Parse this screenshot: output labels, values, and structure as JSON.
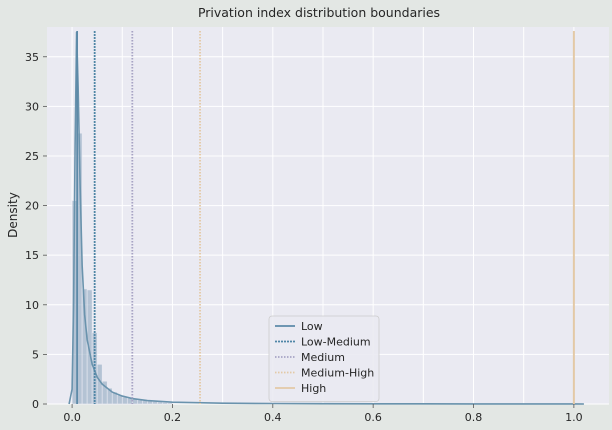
{
  "chart_data": {
    "type": "histogram",
    "title": "Privation index distribution boundaries",
    "xlabel": "",
    "ylabel": "Density",
    "xlim": [
      -0.05,
      1.07
    ],
    "ylim": [
      0,
      38.0
    ],
    "grid": true,
    "xticks": [
      0.0,
      0.2,
      0.4,
      0.6,
      0.8,
      1.0
    ],
    "xtick_labels": [
      "0.0",
      "0.2",
      "0.4",
      "0.6",
      "0.8",
      "1.0"
    ],
    "yticks": [
      0,
      5,
      10,
      15,
      20,
      25,
      30,
      35
    ],
    "ytick_labels": [
      "0",
      "5",
      "10",
      "15",
      "20",
      "25",
      "30",
      "35"
    ],
    "histogram": {
      "bin_edges": [
        0.0,
        0.01,
        0.02,
        0.03,
        0.04,
        0.05,
        0.06,
        0.07,
        0.08,
        0.09,
        0.1,
        0.11,
        0.12,
        0.13,
        0.14,
        0.15,
        0.16,
        0.17,
        0.18,
        0.19,
        0.2
      ],
      "densities": [
        20.5,
        27.3,
        11.6,
        11.5,
        7.2,
        4.0,
        2.3,
        1.6,
        1.2,
        0.9,
        0.7,
        0.6,
        0.5,
        0.4,
        0.35,
        0.3,
        0.25,
        0.2,
        0.15,
        0.12
      ],
      "color": "#8fa8c0"
    },
    "kde": {
      "x": [
        -0.006,
        0.0,
        0.003,
        0.006,
        0.009,
        0.012,
        0.016,
        0.02,
        0.025,
        0.03,
        0.04,
        0.05,
        0.06,
        0.08,
        0.1,
        0.12,
        0.15,
        0.2,
        0.3,
        0.4,
        0.5,
        0.6,
        0.7,
        0.8,
        0.9,
        1.0,
        1.02
      ],
      "y": [
        0.0,
        1.5,
        10.0,
        26.0,
        37.5,
        32.0,
        22.0,
        14.0,
        9.0,
        6.5,
        4.0,
        2.7,
        2.0,
        1.2,
        0.8,
        0.55,
        0.35,
        0.18,
        0.08,
        0.05,
        0.03,
        0.02,
        0.015,
        0.01,
        0.01,
        0.01,
        0.0
      ],
      "color": "#6a93ad"
    },
    "series": [
      {
        "name": "Low",
        "x": 0.01,
        "color": "#5d8aa8",
        "style": "solid"
      },
      {
        "name": "Low-Medium",
        "x": 0.045,
        "color": "#4f86a6",
        "style": "dashed"
      },
      {
        "name": "Medium",
        "x": 0.12,
        "color": "#a7a3c4",
        "style": "dotted"
      },
      {
        "name": "Medium-High",
        "x": 0.255,
        "color": "#e3c9a6",
        "style": "dotted"
      },
      {
        "name": "High",
        "x": 1.0,
        "color": "#e3c9a6",
        "style": "solid-thick"
      }
    ],
    "legend_position": "lower center"
  }
}
